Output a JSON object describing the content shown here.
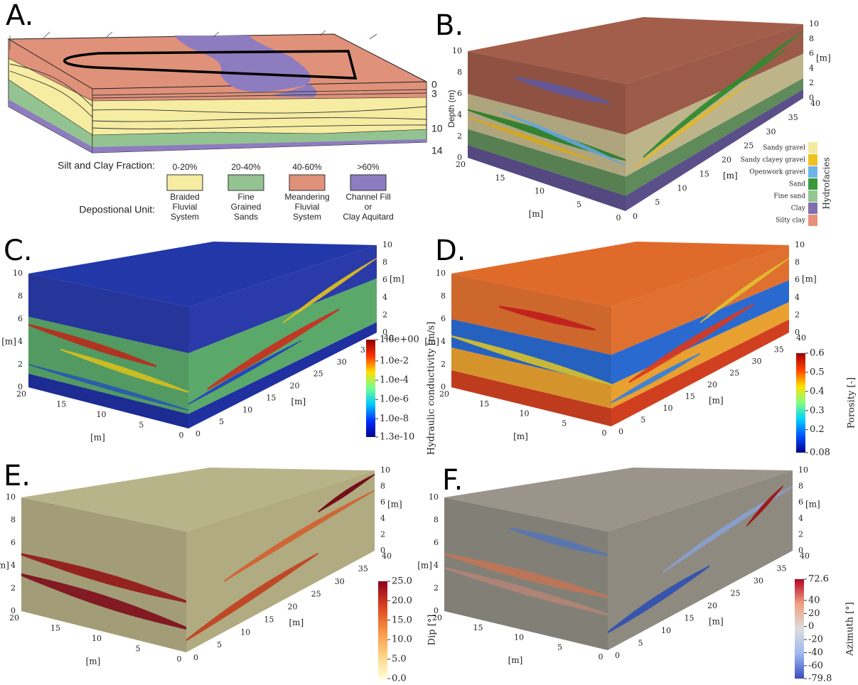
{
  "block_axes": {
    "z_ticks": [
      0,
      2,
      4,
      6,
      8,
      10
    ],
    "y_ticks": [
      0,
      5,
      10,
      15,
      20
    ],
    "x_ticks": [
      0,
      5,
      10,
      15,
      20,
      25,
      30,
      35,
      40
    ],
    "unit": "[m]"
  },
  "panels": {
    "a": {
      "label": "A.",
      "depth_labels": [
        0,
        3,
        10,
        14
      ],
      "fraction_title": "Silt and Clay Fraction:",
      "unit_title": "Depostional Unit:",
      "classes": [
        {
          "fraction": "0-20%",
          "unit": [
            "Braided",
            "Fluvial",
            "System"
          ],
          "color": "#f6eca2"
        },
        {
          "fraction": "20-40%",
          "unit": [
            "Fine",
            "Grained",
            "Sands"
          ],
          "color": "#94c392"
        },
        {
          "fraction": "40-60%",
          "unit": [
            "Meandering",
            "Fluvial",
            "System"
          ],
          "color": "#e0917a"
        },
        {
          "fraction": ">60%",
          "unit": [
            "Channel Fill",
            "or",
            "Clay Aquitard"
          ],
          "color": "#8e7cc0"
        }
      ]
    },
    "b": {
      "label": "B.",
      "axis_label_left": "Depth (m)",
      "legend_title": "Hydrofacies",
      "legend": [
        {
          "name": "Sandy gravel",
          "color": "#f5e9a0"
        },
        {
          "name": "Sandy clayey gravel",
          "color": "#f0c020"
        },
        {
          "name": "Openwork gravel",
          "color": "#6fb3e8"
        },
        {
          "name": "Sand",
          "color": "#3a9a3a"
        },
        {
          "name": "Fine sand",
          "color": "#93c690"
        },
        {
          "name": "Clay",
          "color": "#8070b0"
        },
        {
          "name": "Silty clay",
          "color": "#e8907a"
        }
      ]
    },
    "c": {
      "label": "C.",
      "axis_label_left": "[m]",
      "colorbar": {
        "title": "Hydraulic conductivity  [m/s]",
        "log": true,
        "ticks": [
          {
            "value": 1.6,
            "label": "1.6e+00"
          },
          {
            "value": 0.01,
            "label": "1.0e-2"
          },
          {
            "value": 0.0001,
            "label": "1.0e-4"
          },
          {
            "value": 1e-06,
            "label": "1.0e-6"
          },
          {
            "value": 1e-08,
            "label": "1.0e-8"
          },
          {
            "value": 1.3e-10,
            "label": "1.3e-10"
          }
        ],
        "colors": [
          "#00008f",
          "#0030ff",
          "#00c8ff",
          "#70ff90",
          "#ffe000",
          "#ff3000",
          "#900000"
        ]
      }
    },
    "d": {
      "label": "D.",
      "axis_label_left": "[m]",
      "colorbar": {
        "title": "Porosity  [-]",
        "log": false,
        "ticks": [
          {
            "value": 0.6,
            "label": "0.6"
          },
          {
            "value": 0.5,
            "label": "0.5"
          },
          {
            "value": 0.4,
            "label": "0.4"
          },
          {
            "value": 0.3,
            "label": "0.3"
          },
          {
            "value": 0.2,
            "label": "0.2"
          },
          {
            "value": 0.08,
            "label": "0.08"
          }
        ],
        "colors": [
          "#00008f",
          "#0050ff",
          "#00d0ff",
          "#80ff80",
          "#ffe000",
          "#ff4000",
          "#a00000"
        ]
      }
    },
    "e": {
      "label": "E.",
      "axis_label_left": "[m]",
      "colorbar": {
        "title": "Dip [°]",
        "log": false,
        "ticks": [
          {
            "value": 25,
            "label": "25.0"
          },
          {
            "value": 20,
            "label": "20.0"
          },
          {
            "value": 15,
            "label": "15.0"
          },
          {
            "value": 10,
            "label": "10.0"
          },
          {
            "value": 5,
            "label": "5.0"
          },
          {
            "value": 0,
            "label": "0.0"
          }
        ],
        "colors": [
          "#ffffd4",
          "#fed080",
          "#f89040",
          "#d84020",
          "#90001c"
        ]
      }
    },
    "f": {
      "label": "F.",
      "axis_label_left": "[m]",
      "colorbar": {
        "title": "Azimuth [°]",
        "log": false,
        "ticks": [
          {
            "value": 72.6,
            "label": "72.6"
          },
          40,
          20,
          0,
          -20,
          -40,
          -60,
          {
            "value": -79.8,
            "label": "-79.8"
          }
        ],
        "colors": [
          "#3b4cc0",
          "#9db8f0",
          "#dddddd",
          "#f0a080",
          "#b40426"
        ]
      }
    }
  }
}
